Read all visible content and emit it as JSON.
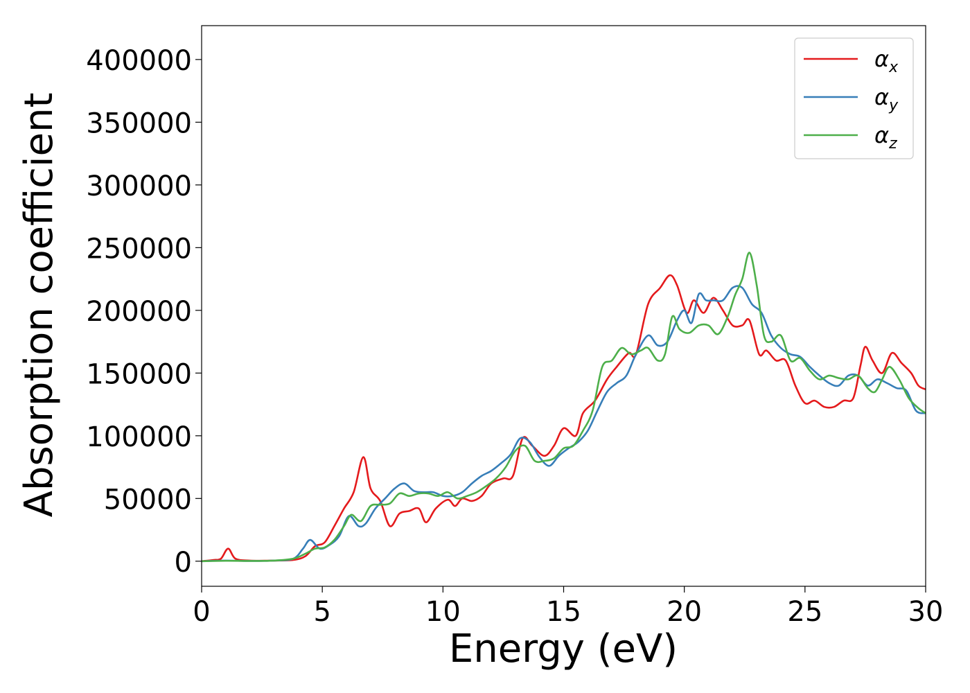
{
  "chart_data": {
    "type": "line",
    "title": "",
    "xlabel": "Energy (eV)",
    "ylabel": "Absorption coefficient",
    "xlim": [
      0,
      30
    ],
    "ylim": [
      -20000,
      427000
    ],
    "xticks": [
      0,
      5,
      10,
      15,
      20,
      25,
      30
    ],
    "yticks": [
      0,
      50000,
      100000,
      150000,
      200000,
      250000,
      300000,
      350000,
      400000
    ],
    "xtick_labels": [
      "0",
      "5",
      "10",
      "15",
      "20",
      "25",
      "30"
    ],
    "ytick_labels": [
      "0",
      "50000",
      "100000",
      "150000",
      "200000",
      "250000",
      "300000",
      "350000",
      "400000"
    ],
    "grid": false,
    "legend_position": "top-right",
    "series": [
      {
        "name": "αx",
        "symbol": "α",
        "subscript": "x",
        "color": "#e41a1c",
        "points": [
          [
            0,
            0
          ],
          [
            0.5,
            1000
          ],
          [
            0.8,
            2000
          ],
          [
            1.1,
            10000
          ],
          [
            1.4,
            2000
          ],
          [
            2,
            500
          ],
          [
            3,
            500
          ],
          [
            3.8,
            1000
          ],
          [
            4.3,
            4000
          ],
          [
            4.7,
            12000
          ],
          [
            5.1,
            15000
          ],
          [
            5.5,
            28000
          ],
          [
            5.9,
            42000
          ],
          [
            6.3,
            55000
          ],
          [
            6.7,
            83000
          ],
          [
            7.0,
            58000
          ],
          [
            7.4,
            48000
          ],
          [
            7.8,
            28000
          ],
          [
            8.2,
            38000
          ],
          [
            8.6,
            40000
          ],
          [
            9.0,
            42000
          ],
          [
            9.3,
            31000
          ],
          [
            9.7,
            42000
          ],
          [
            10.2,
            49000
          ],
          [
            10.5,
            44000
          ],
          [
            10.8,
            50000
          ],
          [
            11.2,
            48000
          ],
          [
            11.6,
            52000
          ],
          [
            12.0,
            62000
          ],
          [
            12.5,
            66000
          ],
          [
            12.9,
            68000
          ],
          [
            13.3,
            98000
          ],
          [
            13.7,
            92000
          ],
          [
            14.2,
            84000
          ],
          [
            14.6,
            92000
          ],
          [
            15.0,
            106000
          ],
          [
            15.5,
            100000
          ],
          [
            15.8,
            118000
          ],
          [
            16.3,
            128000
          ],
          [
            16.8,
            145000
          ],
          [
            17.2,
            155000
          ],
          [
            17.7,
            166000
          ],
          [
            18.0,
            165000
          ],
          [
            18.5,
            205000
          ],
          [
            19.0,
            218000
          ],
          [
            19.4,
            228000
          ],
          [
            19.7,
            220000
          ],
          [
            20.1,
            198000
          ],
          [
            20.4,
            208000
          ],
          [
            20.8,
            198000
          ],
          [
            21.2,
            210000
          ],
          [
            21.6,
            200000
          ],
          [
            22.0,
            188000
          ],
          [
            22.4,
            188000
          ],
          [
            22.7,
            192000
          ],
          [
            23.1,
            165000
          ],
          [
            23.4,
            168000
          ],
          [
            23.8,
            160000
          ],
          [
            24.2,
            160000
          ],
          [
            24.6,
            140000
          ],
          [
            25.0,
            126000
          ],
          [
            25.4,
            128000
          ],
          [
            25.8,
            123000
          ],
          [
            26.2,
            123000
          ],
          [
            26.6,
            128000
          ],
          [
            27.0,
            130000
          ],
          [
            27.3,
            156000
          ],
          [
            27.5,
            171000
          ],
          [
            27.8,
            160000
          ],
          [
            28.2,
            150000
          ],
          [
            28.6,
            166000
          ],
          [
            29.0,
            158000
          ],
          [
            29.4,
            150000
          ],
          [
            29.7,
            140000
          ],
          [
            30,
            137000
          ]
        ]
      },
      {
        "name": "αy",
        "symbol": "α",
        "subscript": "y",
        "color": "#377eb8",
        "points": [
          [
            0,
            0
          ],
          [
            1,
            500
          ],
          [
            2,
            200
          ],
          [
            3,
            500
          ],
          [
            3.8,
            2000
          ],
          [
            4.2,
            10000
          ],
          [
            4.5,
            17000
          ],
          [
            4.9,
            10000
          ],
          [
            5.3,
            13000
          ],
          [
            5.7,
            20000
          ],
          [
            6.1,
            36000
          ],
          [
            6.5,
            28000
          ],
          [
            6.8,
            30000
          ],
          [
            7.2,
            42000
          ],
          [
            7.6,
            50000
          ],
          [
            8.0,
            58000
          ],
          [
            8.4,
            62000
          ],
          [
            8.8,
            56000
          ],
          [
            9.2,
            55000
          ],
          [
            9.6,
            55000
          ],
          [
            10.0,
            52000
          ],
          [
            10.4,
            52000
          ],
          [
            10.8,
            55000
          ],
          [
            11.2,
            62000
          ],
          [
            11.6,
            68000
          ],
          [
            12.0,
            72000
          ],
          [
            12.4,
            78000
          ],
          [
            12.8,
            85000
          ],
          [
            13.2,
            98000
          ],
          [
            13.6,
            95000
          ],
          [
            14.0,
            83000
          ],
          [
            14.4,
            76000
          ],
          [
            14.8,
            84000
          ],
          [
            15.2,
            90000
          ],
          [
            15.6,
            95000
          ],
          [
            16.0,
            104000
          ],
          [
            16.4,
            120000
          ],
          [
            16.8,
            135000
          ],
          [
            17.2,
            142000
          ],
          [
            17.6,
            148000
          ],
          [
            18.0,
            165000
          ],
          [
            18.5,
            180000
          ],
          [
            18.9,
            172000
          ],
          [
            19.3,
            175000
          ],
          [
            19.7,
            192000
          ],
          [
            20.0,
            200000
          ],
          [
            20.3,
            190000
          ],
          [
            20.6,
            213000
          ],
          [
            20.9,
            208000
          ],
          [
            21.2,
            208000
          ],
          [
            21.6,
            208000
          ],
          [
            22.0,
            218000
          ],
          [
            22.4,
            218000
          ],
          [
            22.8,
            205000
          ],
          [
            23.2,
            198000
          ],
          [
            23.6,
            180000
          ],
          [
            24.0,
            170000
          ],
          [
            24.4,
            165000
          ],
          [
            24.8,
            163000
          ],
          [
            25.2,
            155000
          ],
          [
            25.6,
            148000
          ],
          [
            26.0,
            142000
          ],
          [
            26.4,
            140000
          ],
          [
            26.8,
            148000
          ],
          [
            27.2,
            148000
          ],
          [
            27.6,
            140000
          ],
          [
            28.0,
            145000
          ],
          [
            28.4,
            142000
          ],
          [
            28.8,
            138000
          ],
          [
            29.2,
            136000
          ],
          [
            29.6,
            120000
          ],
          [
            30,
            118000
          ]
        ]
      },
      {
        "name": "αz",
        "symbol": "α",
        "subscript": "z",
        "color": "#4daf4a",
        "points": [
          [
            0,
            0
          ],
          [
            1,
            300
          ],
          [
            2,
            200
          ],
          [
            3,
            500
          ],
          [
            3.8,
            2000
          ],
          [
            4.3,
            6000
          ],
          [
            4.7,
            10000
          ],
          [
            5.1,
            11000
          ],
          [
            5.5,
            17000
          ],
          [
            5.9,
            28000
          ],
          [
            6.2,
            37000
          ],
          [
            6.6,
            32000
          ],
          [
            7.0,
            44000
          ],
          [
            7.4,
            45000
          ],
          [
            7.8,
            46000
          ],
          [
            8.2,
            54000
          ],
          [
            8.6,
            52000
          ],
          [
            9.0,
            54000
          ],
          [
            9.4,
            54000
          ],
          [
            9.8,
            52000
          ],
          [
            10.2,
            55000
          ],
          [
            10.6,
            50000
          ],
          [
            11.0,
            52000
          ],
          [
            11.4,
            55000
          ],
          [
            11.8,
            60000
          ],
          [
            12.2,
            66000
          ],
          [
            12.6,
            75000
          ],
          [
            13.0,
            88000
          ],
          [
            13.4,
            92000
          ],
          [
            13.8,
            80000
          ],
          [
            14.2,
            80000
          ],
          [
            14.6,
            82000
          ],
          [
            15.0,
            90000
          ],
          [
            15.4,
            92000
          ],
          [
            15.8,
            104000
          ],
          [
            16.2,
            120000
          ],
          [
            16.6,
            155000
          ],
          [
            17.0,
            160000
          ],
          [
            17.4,
            170000
          ],
          [
            17.8,
            165000
          ],
          [
            18.2,
            168000
          ],
          [
            18.5,
            170000
          ],
          [
            18.9,
            160000
          ],
          [
            19.2,
            165000
          ],
          [
            19.5,
            195000
          ],
          [
            19.8,
            185000
          ],
          [
            20.2,
            182000
          ],
          [
            20.6,
            188000
          ],
          [
            21.0,
            188000
          ],
          [
            21.4,
            181000
          ],
          [
            21.8,
            195000
          ],
          [
            22.1,
            212000
          ],
          [
            22.4,
            225000
          ],
          [
            22.7,
            246000
          ],
          [
            23.0,
            220000
          ],
          [
            23.3,
            180000
          ],
          [
            23.6,
            175000
          ],
          [
            24.0,
            180000
          ],
          [
            24.4,
            160000
          ],
          [
            24.8,
            162000
          ],
          [
            25.2,
            152000
          ],
          [
            25.6,
            145000
          ],
          [
            26.0,
            148000
          ],
          [
            26.4,
            146000
          ],
          [
            26.8,
            145000
          ],
          [
            27.2,
            148000
          ],
          [
            27.6,
            138000
          ],
          [
            27.9,
            135000
          ],
          [
            28.2,
            145000
          ],
          [
            28.5,
            155000
          ],
          [
            28.9,
            145000
          ],
          [
            29.3,
            130000
          ],
          [
            29.7,
            122000
          ],
          [
            30,
            118000
          ]
        ]
      }
    ]
  }
}
